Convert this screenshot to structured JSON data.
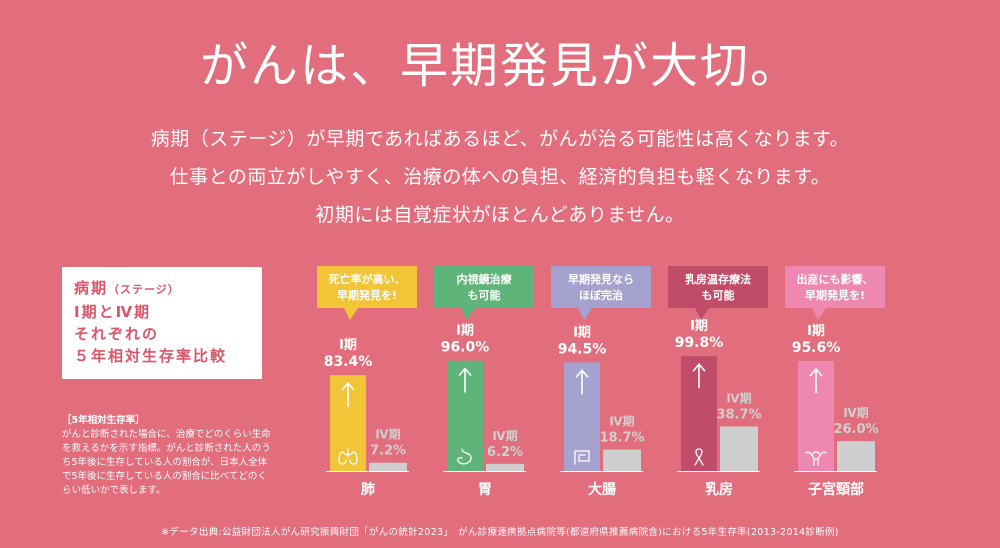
{
  "headline": "がんは、早期発見が大切。",
  "intro": [
    "病期（ステージ）が早期であればあるほど、がんが治る可能性は高くなります。",
    "仕事との両立がしやすく、治療の体への負担、経済的負担も軽くなります。",
    "初期には自覚症状がほとんどありません。"
  ],
  "stage_box": {
    "line1": "病期",
    "line1_small": "（ステージ）",
    "line2": "Ⅰ期とⅣ期",
    "line3": "それぞれの",
    "line4": "５年相対生存率比較"
  },
  "note": {
    "title": "［5年相対生存率］",
    "body": "がんと診断された場合に、治療でどのくらい生命を救えるかを示す指標。がんと診断された人のうち5年後に生存している人の割合が、日本人全体で5年後に生存している人の割合に比べてどのくらい低いかで表します。"
  },
  "footnote": "※データ出典:公益財団法人がん研究振興財団「がんの統計2023」　がん診療連携拠点病院等(都道府県推薦病院含)における5年生存率(2013-2014診断例)",
  "colors": {
    "background": "#e26d7d",
    "stage4_bar": "#cfcfcf",
    "stage4_label": "#cfcfcf"
  },
  "chart_data": {
    "type": "bar",
    "categories": [
      "肺",
      "胃",
      "大腸",
      "乳房",
      "子宮頸部"
    ],
    "series": [
      {
        "name": "Ⅰ期",
        "values": [
          83.4,
          96.0,
          94.5,
          99.8,
          95.6
        ]
      },
      {
        "name": "Ⅳ期",
        "values": [
          7.2,
          6.2,
          18.7,
          38.7,
          26.0
        ]
      }
    ],
    "stage1_labels": [
      "83.4%",
      "96.0%",
      "94.5%",
      "99.8%",
      "95.6%"
    ],
    "stage4_labels": [
      "7.2%",
      "6.2%",
      "18.7%",
      "38.7%",
      "26.0%"
    ],
    "series_colors": [
      "#f1c537",
      "#5fb47a",
      "#a5a2cf",
      "#c04c6a",
      "#ee88b0"
    ],
    "callouts": [
      [
        "死亡率が高い、",
        "早期発見を!"
      ],
      [
        "内視鏡治療",
        "も可能"
      ],
      [
        "早期発見なら",
        "ほぼ完治"
      ],
      [
        "乳房温存療法",
        "も可能"
      ],
      [
        "出産にも影響、",
        "早期発見を!"
      ]
    ],
    "icons": [
      "lungs-icon",
      "stomach-icon",
      "colon-icon",
      "ribbon-icon",
      "uterus-icon"
    ],
    "ylim": [
      0,
      100
    ]
  }
}
